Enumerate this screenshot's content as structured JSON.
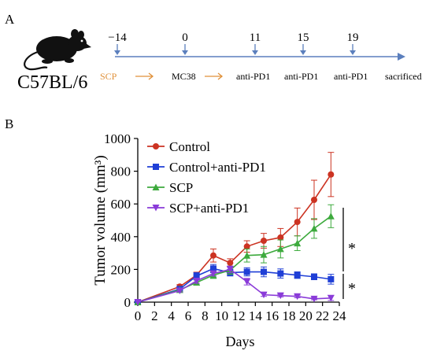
{
  "panel_a": {
    "label": "A",
    "mouse_icon": "mouse-silhouette-icon",
    "strain": "C57BL/6",
    "days": [
      "−14",
      "0",
      "11",
      "15",
      "19"
    ],
    "events": [
      "SCP",
      "MC38",
      "anti-PD1",
      "anti-PD1",
      "anti-PD1",
      "sacrificed"
    ],
    "colors": {
      "timeline": "#5b7fbd",
      "scp": "#e0913a",
      "arrow": "#e0913a"
    }
  },
  "panel_b": {
    "label": "B",
    "significance": [
      "*",
      "*"
    ]
  },
  "chart_data": {
    "type": "line",
    "title": "",
    "xlabel": "Days",
    "ylabel": "Tumor volume (mm³)",
    "xlim": [
      0,
      24
    ],
    "ylim": [
      0,
      1000
    ],
    "xticks": [
      0,
      2,
      4,
      6,
      8,
      10,
      12,
      14,
      16,
      18,
      20,
      22,
      24
    ],
    "yticks": [
      0,
      200,
      400,
      600,
      800,
      1000
    ],
    "grid": false,
    "legend": "top-left",
    "series": [
      {
        "name": "Control",
        "color": "#cc3322",
        "marker": "circle",
        "x": [
          0,
          5,
          7,
          9,
          11,
          13,
          15,
          17,
          19,
          21,
          23
        ],
        "y": [
          0,
          95,
          165,
          285,
          240,
          340,
          375,
          395,
          490,
          625,
          780
        ],
        "err": [
          0,
          12,
          18,
          40,
          25,
          35,
          45,
          55,
          85,
          120,
          135
        ]
      },
      {
        "name": "Control+anti-PD1",
        "color": "#1f3fd6",
        "marker": "square",
        "x": [
          0,
          5,
          7,
          9,
          11,
          13,
          15,
          17,
          19,
          21,
          23
        ],
        "y": [
          0,
          80,
          160,
          205,
          180,
          185,
          185,
          175,
          165,
          155,
          140
        ],
        "err": [
          0,
          10,
          20,
          25,
          20,
          25,
          30,
          28,
          20,
          18,
          30
        ]
      },
      {
        "name": "SCP",
        "color": "#3daa3d",
        "marker": "triangle",
        "x": [
          0,
          5,
          7,
          9,
          11,
          13,
          15,
          17,
          19,
          21,
          23
        ],
        "y": [
          0,
          75,
          120,
          165,
          195,
          285,
          290,
          325,
          360,
          450,
          525
        ],
        "err": [
          0,
          10,
          15,
          20,
          25,
          40,
          50,
          55,
          45,
          60,
          70
        ]
      },
      {
        "name": "SCP+anti-PD1",
        "color": "#8a3bd8",
        "marker": "triangle-down",
        "x": [
          0,
          5,
          7,
          9,
          11,
          13,
          15,
          17,
          19,
          21,
          23
        ],
        "y": [
          0,
          70,
          130,
          175,
          200,
          125,
          45,
          40,
          35,
          20,
          25
        ],
        "err": [
          0,
          8,
          15,
          15,
          20,
          20,
          10,
          8,
          8,
          6,
          15
        ]
      }
    ]
  }
}
